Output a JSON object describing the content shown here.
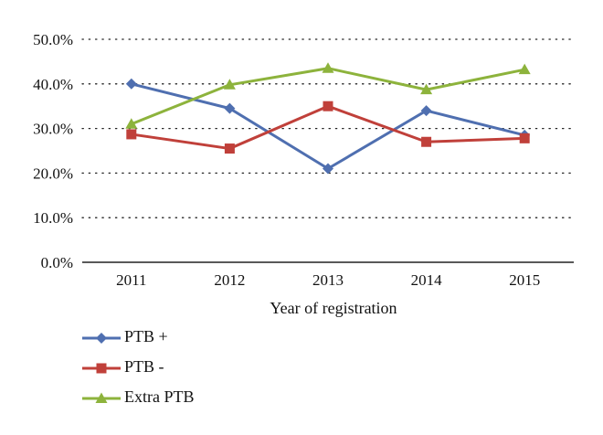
{
  "chart_data": {
    "type": "line",
    "categories": [
      "2011",
      "2012",
      "2013",
      "2014",
      "2015"
    ],
    "series": [
      {
        "name": "PTB +",
        "values": [
          40.0,
          34.5,
          21.0,
          34.0,
          28.5
        ],
        "color": "#4F6FB0",
        "marker": "diamond"
      },
      {
        "name": "PTB -",
        "values": [
          28.7,
          25.5,
          35.0,
          27.0,
          27.8
        ],
        "color": "#C0403A",
        "marker": "square"
      },
      {
        "name": "Extra PTB",
        "values": [
          31.0,
          39.8,
          43.5,
          38.7,
          43.2
        ],
        "color": "#8DB33C",
        "marker": "triangle"
      }
    ],
    "y_ticks": [
      "0.0%",
      "10.0%",
      "20.0%",
      "30.0%",
      "40.0%",
      "50.0%"
    ],
    "ylim": [
      0,
      50
    ],
    "xlabel": "Year of registration",
    "ylabel": "",
    "grid": "dotted horizontal",
    "legend_position": "bottom-left"
  }
}
